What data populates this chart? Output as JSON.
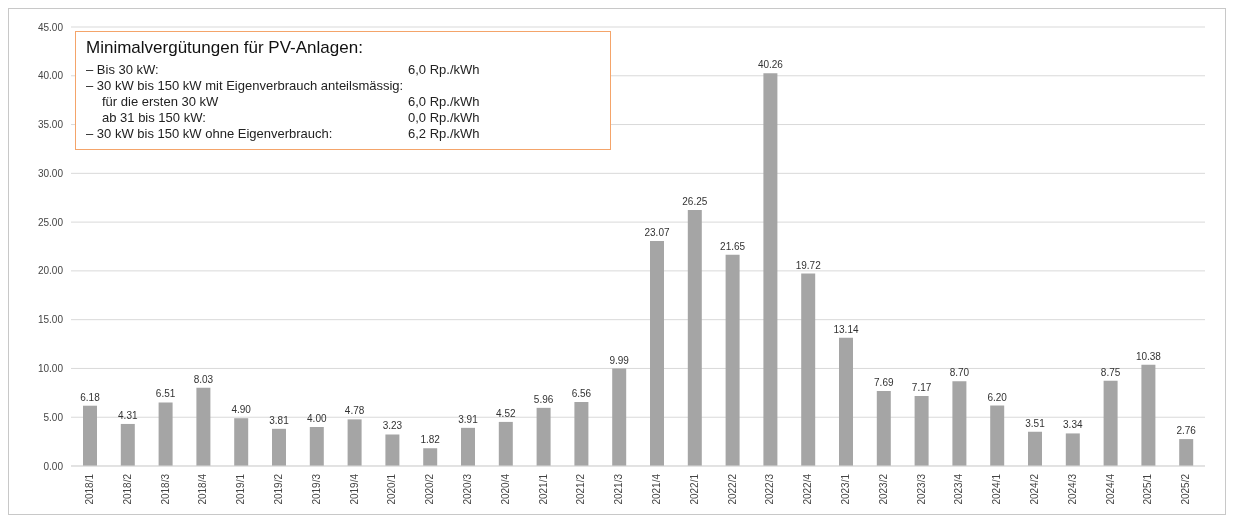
{
  "chart_data": {
    "type": "bar",
    "title": "Minimalvergütungen für PV-Anlagen:",
    "annotations": [
      "– Bis 30 kW:",
      "6,0 Rp./kWh",
      "– 30 kW bis 150 kW mit Eigenverbrauch anteilsmässig:",
      "für die ersten 30 kW",
      "6,0 Rp./kWh",
      "ab 31 bis 150 kW:",
      "0,0 Rp./kWh",
      "– 30 kW bis 150 kW ohne Eigenverbrauch:",
      "6,2 Rp./kWh"
    ],
    "categories": [
      "2018/1",
      "2018/2",
      "2018/3",
      "2018/4",
      "2019/1",
      "2019/2",
      "2019/3",
      "2019/4",
      "2020/1",
      "2020/2",
      "2020/3",
      "2020/4",
      "2021/1",
      "2021/2",
      "2021/3",
      "2021/4",
      "2022/1",
      "2022/2",
      "2022/3",
      "2022/4",
      "2023/1",
      "2023/2",
      "2023/3",
      "2023/4",
      "2024/1",
      "2024/2",
      "2024/3",
      "2024/4",
      "2025/1",
      "2025/2"
    ],
    "values": [
      6.18,
      4.31,
      6.51,
      8.03,
      4.9,
      3.81,
      4.0,
      4.78,
      3.23,
      1.82,
      3.91,
      4.52,
      5.96,
      6.56,
      9.99,
      23.07,
      26.25,
      21.65,
      40.26,
      19.72,
      13.14,
      7.69,
      7.17,
      8.7,
      6.2,
      3.51,
      3.34,
      8.75,
      10.38,
      2.76
    ],
    "value_labels": [
      "6.18",
      "4.31",
      "6.51",
      "8.03",
      "4.90",
      "3.81",
      "4.00",
      "4.78",
      "3.23",
      "1.82",
      "3.91",
      "4.52",
      "5.96",
      "6.56",
      "9.99",
      "23.07",
      "26.25",
      "21.65",
      "40.26",
      "19.72",
      "13.14",
      "7.69",
      "7.17",
      "8.70",
      "6.20",
      "3.51",
      "3.34",
      "8.75",
      "10.38",
      "2.76"
    ],
    "color": "#a5a5a5",
    "ylim": [
      0,
      45
    ],
    "yticks": [
      {
        "value": 0,
        "label": "0.00"
      },
      {
        "value": 5,
        "label": "5.00"
      },
      {
        "value": 10,
        "label": "10.00"
      },
      {
        "value": 15,
        "label": "15.00"
      },
      {
        "value": 20,
        "label": "20.00"
      },
      {
        "value": 25,
        "label": "25.00"
      },
      {
        "value": 30,
        "label": "30.00"
      },
      {
        "value": 35,
        "label": "35.00"
      },
      {
        "value": 40,
        "label": "40.00"
      },
      {
        "value": 45,
        "label": "45.00"
      }
    ],
    "grid": "y"
  }
}
